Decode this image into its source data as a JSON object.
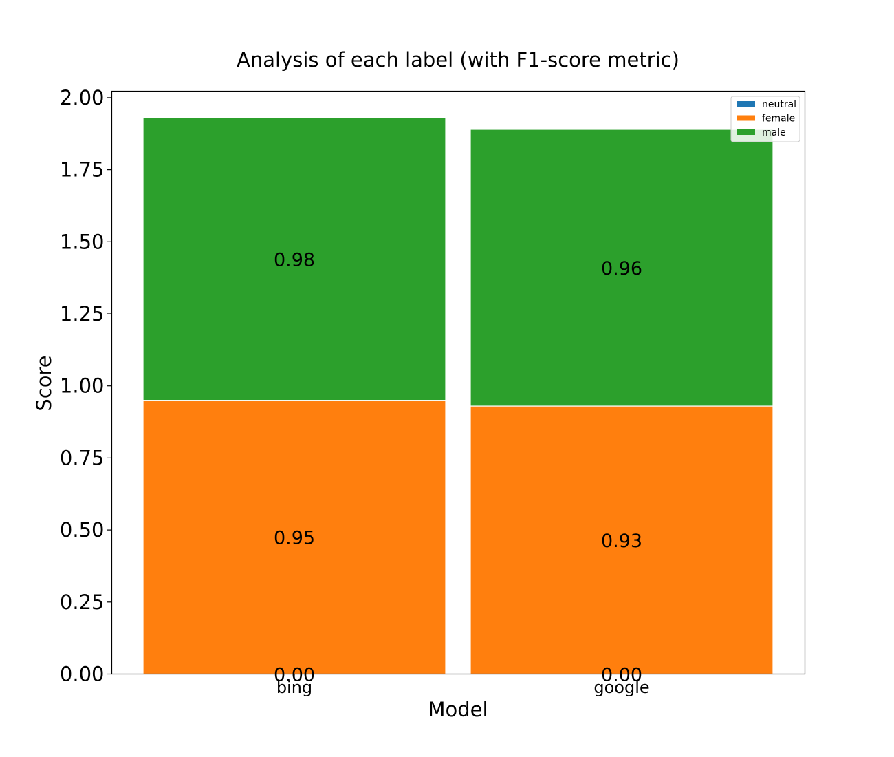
{
  "chart_data": {
    "type": "bar",
    "stacked": true,
    "title": "Analysis of each label (with F1-score metric)",
    "xlabel": "Model",
    "ylabel": "Score",
    "categories": [
      "bing",
      "google"
    ],
    "ylim": [
      0,
      2.0
    ],
    "yticks": [
      "0.00",
      "0.25",
      "0.50",
      "0.75",
      "1.00",
      "1.25",
      "1.50",
      "1.75",
      "2.00"
    ],
    "grid": false,
    "legend_position": "top-right",
    "series": [
      {
        "name": "neutral",
        "color": "#1f77b4",
        "values": [
          0.0,
          0.0
        ],
        "labels": [
          "0.00",
          "0.00"
        ]
      },
      {
        "name": "female",
        "color": "#ff7f0e",
        "values": [
          0.95,
          0.93
        ],
        "labels": [
          "0.95",
          "0.93"
        ]
      },
      {
        "name": "male",
        "color": "#2ca02c",
        "values": [
          0.98,
          0.96
        ],
        "labels": [
          "0.98",
          "0.96"
        ]
      }
    ]
  }
}
